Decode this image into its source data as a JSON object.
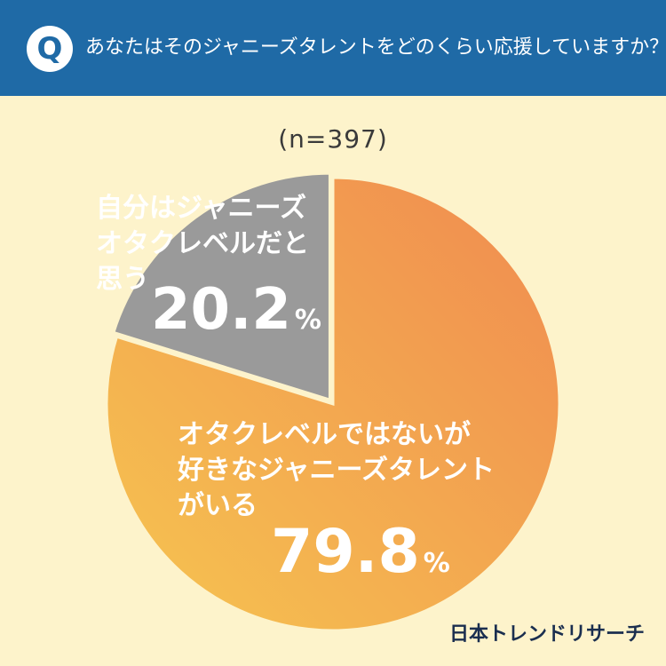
{
  "header": {
    "badge": "Q",
    "question": "あなたはそのジャニーズタレントをどのくらい応援していますか？"
  },
  "sample_size": "(n=397)",
  "colors": {
    "header_bg": "#1f6aa6",
    "background": "#fdf3cb",
    "orange_start": "#f08a50",
    "orange_end": "#f6c550",
    "gray": "#9a9a9a"
  },
  "chart_data": {
    "type": "pie",
    "slices": [
      {
        "label": "オタクレベルではないが好きなジャニーズタレントがいる",
        "value": 79.8
      },
      {
        "label": "自分はジャニーズオタクレベルだと思う",
        "value": 20.2
      }
    ],
    "unit": "%",
    "start": "12 o'clock, clockwise"
  },
  "labels": {
    "fan_lines": [
      "オタクレベルではないが",
      "好きなジャニーズタレント",
      "がいる"
    ],
    "fan_value": "79.8",
    "otaku_lines": [
      "自分はジャニーズ",
      "オタクレベルだと",
      "思う"
    ],
    "otaku_value": "20.2",
    "unit": "%"
  },
  "logo": "日本トレンドリサーチ"
}
